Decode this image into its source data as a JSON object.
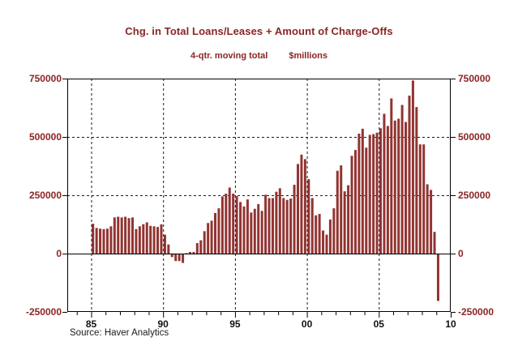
{
  "colors": {
    "bar": "#923432",
    "text_red": "#8b2525",
    "axis_line": "#000000",
    "gridline": "#1a1a1a",
    "x_label_text": "#111111",
    "source_text": "#1a1a1a",
    "background": "#ffffff"
  },
  "chart_data": {
    "type": "bar",
    "title": "Chg. in Total Loans/Leases + Amount of Charge-Offs",
    "subtitle_left": "4-qtr. moving total",
    "subtitle_right": "$millions",
    "source": "Source: Haver Analytics",
    "units": "$millions",
    "frequency": "quarterly",
    "x_start": "1985Q1",
    "x_axis_years_span": [
      1983,
      2010
    ],
    "ylim": [
      -250000,
      750000
    ],
    "y_ticks": [
      750000,
      500000,
      250000,
      0,
      -250000
    ],
    "y_tick_labels": [
      "750000",
      "500000",
      "250000",
      "0",
      "-250000"
    ],
    "x_major_tick_years": [
      1985,
      1990,
      1995,
      2000,
      2005,
      2010
    ],
    "x_tick_labels": [
      "85",
      "90",
      "95",
      "00",
      "05",
      "10"
    ],
    "grid": "dashed verticals at 5-year ticks; dashed horizontals at 250000 and 500000; solid zero line",
    "legend": "none",
    "values": [
      128000,
      110000,
      107000,
      105000,
      107000,
      117000,
      155000,
      158000,
      155000,
      158000,
      152000,
      155000,
      105000,
      117000,
      126000,
      134000,
      119000,
      117000,
      114000,
      125000,
      81000,
      39000,
      -15000,
      -32000,
      -32000,
      -40000,
      2000,
      7000,
      7000,
      45000,
      57000,
      96000,
      131000,
      141000,
      174000,
      194000,
      245000,
      257000,
      283000,
      257000,
      246000,
      221000,
      202000,
      232000,
      176000,
      192000,
      212000,
      183000,
      252000,
      238000,
      238000,
      265000,
      280000,
      238000,
      230000,
      236000,
      295000,
      384000,
      424000,
      405000,
      319000,
      238000,
      164000,
      170000,
      99000,
      81000,
      146000,
      194000,
      355000,
      378000,
      267000,
      293000,
      419000,
      444000,
      514000,
      535000,
      454000,
      509000,
      512000,
      518000,
      537000,
      599000,
      547000,
      665000,
      570000,
      578000,
      637000,
      564000,
      677000,
      742000,
      628000,
      468000,
      468000,
      297000,
      273000,
      93000,
      -203000
    ]
  }
}
